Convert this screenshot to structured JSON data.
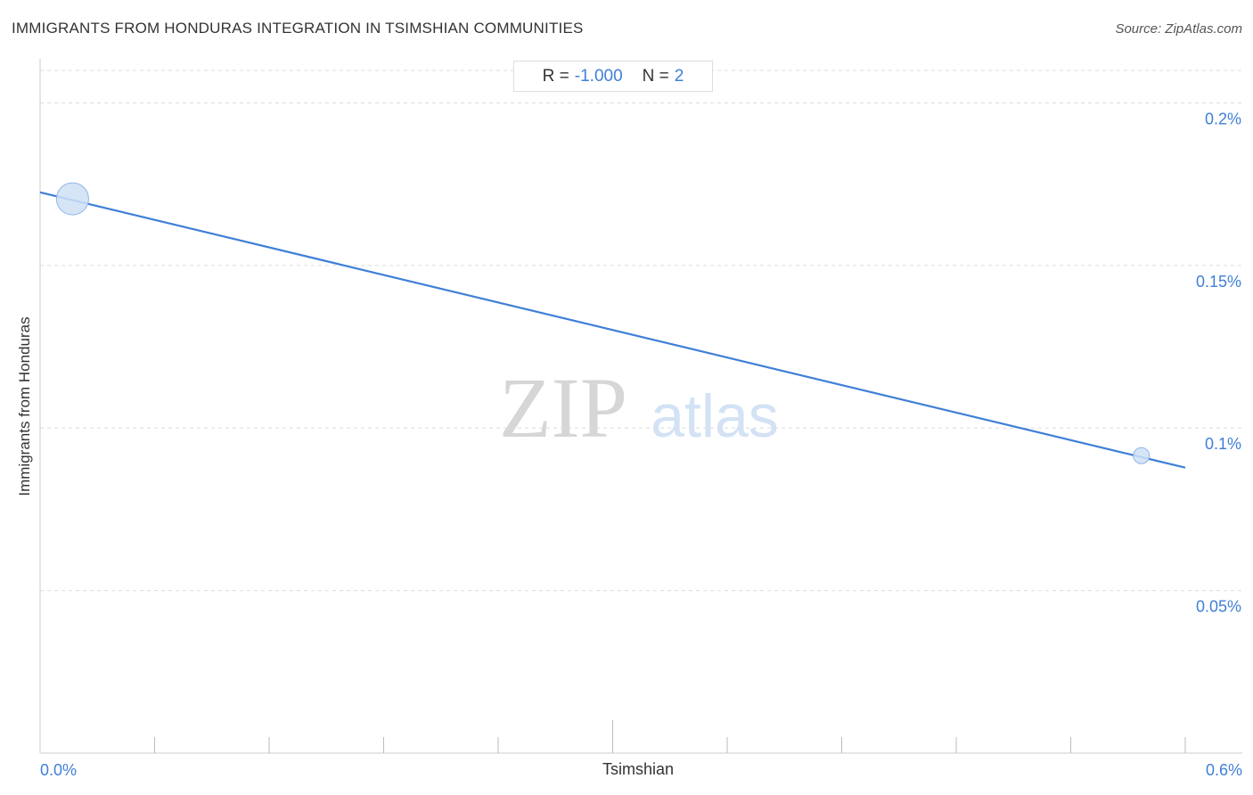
{
  "title": "IMMIGRANTS FROM HONDURAS INTEGRATION IN TSIMSHIAN COMMUNITIES",
  "source": "Source: ZipAtlas.com",
  "watermark": {
    "zip": "ZIP",
    "atlas": "atlas"
  },
  "stats": {
    "r_label": "R =",
    "r_value": "-1.000",
    "n_label": "N =",
    "n_value": "2"
  },
  "colors": {
    "accent": "#3f7fd7",
    "point_fill": "#cfe0f5",
    "point_stroke": "#8fb4e6"
  },
  "chart_data": {
    "type": "scatter",
    "title": "IMMIGRANTS FROM HONDURAS INTEGRATION IN TSIMSHIAN COMMUNITIES",
    "xlabel": "Tsimshian",
    "ylabel": "Immigrants from Honduras",
    "xlim": [
      0,
      0.6
    ],
    "ylim": [
      0,
      0.21
    ],
    "x_ticks": [
      {
        "value": 0.0,
        "label": "0.0%"
      },
      {
        "value": 0.6,
        "label": "0.6%"
      }
    ],
    "y_ticks": [
      {
        "value": 0.2,
        "label": "0.2%"
      },
      {
        "value": 0.15,
        "label": "0.15%"
      },
      {
        "value": 0.1,
        "label": "0.1%"
      },
      {
        "value": 0.05,
        "label": "0.05%"
      }
    ],
    "points": [
      {
        "x": 0.017,
        "y": 0.1705,
        "weight": "large"
      },
      {
        "x": 0.577,
        "y": 0.0915,
        "weight": "small"
      }
    ],
    "trendline": {
      "x": [
        0.0,
        0.6
      ],
      "y": [
        0.1725,
        0.0878
      ]
    },
    "grid": true,
    "stats": {
      "r": -1.0,
      "n": 2
    }
  }
}
